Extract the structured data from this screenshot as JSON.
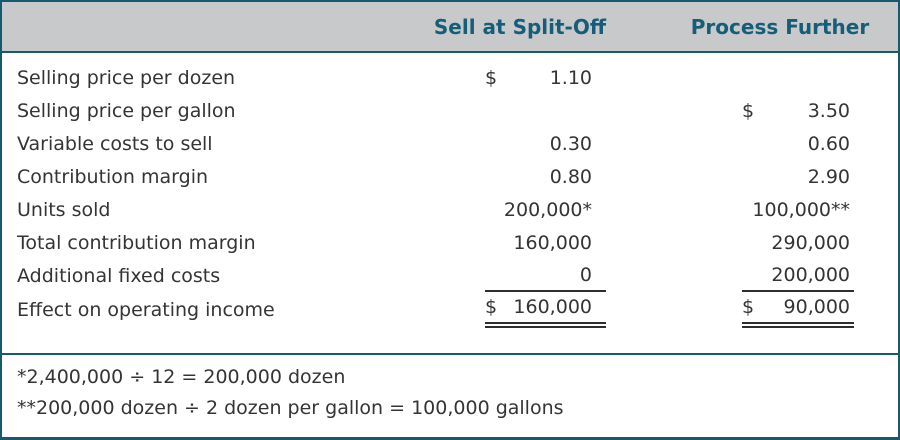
{
  "table": {
    "column_headers": {
      "split_off": "Sell at Split-Off",
      "process_further": "Process Further"
    },
    "rows": [
      {
        "label": "Selling price per dozen",
        "split_off": {
          "currency": "$",
          "amount": "1.10"
        },
        "process_further": null
      },
      {
        "label": "Selling price per gallon",
        "split_off": null,
        "process_further": {
          "currency": "$",
          "amount": "3.50"
        }
      },
      {
        "label": "Variable costs to sell",
        "split_off": {
          "currency": "",
          "amount": "0.30"
        },
        "process_further": {
          "currency": "",
          "amount": "0.60"
        }
      },
      {
        "label": "Contribution margin",
        "split_off": {
          "currency": "",
          "amount": "0.80"
        },
        "process_further": {
          "currency": "",
          "amount": "2.90"
        }
      },
      {
        "label": "Units sold",
        "split_off": {
          "currency": "",
          "amount": "200,000*"
        },
        "process_further": {
          "currency": "",
          "amount": "100,000**"
        }
      },
      {
        "label": "Total contribution margin",
        "split_off": {
          "currency": "",
          "amount": "160,000"
        },
        "process_further": {
          "currency": "",
          "amount": "290,000"
        }
      },
      {
        "label": "Additional fixed costs",
        "split_off": {
          "currency": "",
          "amount": "0"
        },
        "process_further": {
          "currency": "",
          "amount": "200,000"
        },
        "rule": "single"
      },
      {
        "label": "Effect on operating income",
        "split_off": {
          "currency": "$",
          "amount": "160,000"
        },
        "process_further": {
          "currency": "$",
          "amount": "90,000"
        },
        "rule": "double"
      }
    ],
    "footnotes": [
      "*2,400,000 ÷ 12 = 200,000 dozen",
      "**200,000 dozen ÷ 2 dozen per gallon = 100,000 gallons"
    ]
  },
  "colors": {
    "accent_teal_border": "#17596f",
    "header_text": "#155d78",
    "header_background": "#c8c9ca",
    "body_text": "#343434"
  }
}
